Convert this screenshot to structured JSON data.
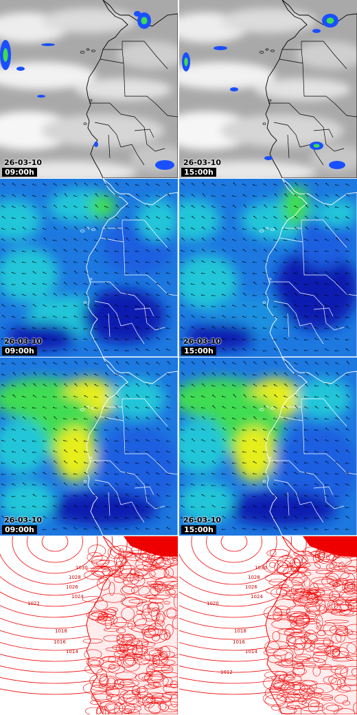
{
  "panels": [
    {
      "row": "satellite",
      "col": 0,
      "date": "26-03-10",
      "time": "09:00h"
    },
    {
      "row": "satellite",
      "col": 1,
      "date": "26-03-10",
      "time": "15:00h"
    },
    {
      "row": "wind-850",
      "col": 0,
      "date": "26-03-10",
      "time": "09:00h"
    },
    {
      "row": "wind-850",
      "col": 1,
      "date": "26-03-10",
      "time": "15:00h"
    },
    {
      "row": "wind-surface",
      "col": 0,
      "date": "26-03-10",
      "time": "09:00h"
    },
    {
      "row": "wind-surface",
      "col": 1,
      "date": "26-03-10",
      "time": "15:00h"
    },
    {
      "row": "pressure",
      "col": 0
    },
    {
      "row": "pressure",
      "col": 1
    }
  ],
  "isobars": {
    "left": [
      "1030",
      "1028",
      "1026",
      "1024",
      "1022",
      "1018",
      "1016",
      "1014"
    ],
    "right": [
      "1030",
      "1028",
      "1026",
      "1024",
      "1020",
      "1018",
      "1016",
      "1014",
      "1012"
    ]
  },
  "colors": {
    "cloud": "#d8d8d8",
    "ocean_blue": "#1d78e0",
    "deep_blue": "#0a1fb0",
    "cyan": "#22c6d8",
    "green": "#3fdc52",
    "yellow": "#e6ee1a",
    "isobar_red": "#ee0000",
    "border": "#000000"
  }
}
